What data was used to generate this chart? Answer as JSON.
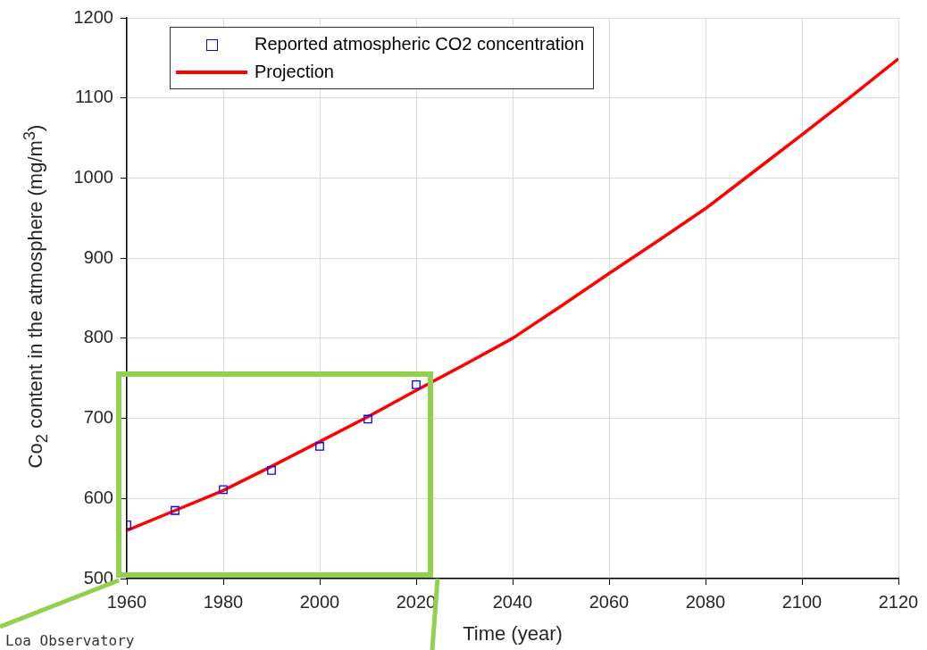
{
  "chart_data": {
    "type": "line",
    "xlabel": "Time (year)",
    "ylabel": "Co$_{2}$ content in the atmosphere (mg/m$^{3}$)",
    "xlim": [
      1960,
      2120
    ],
    "xticks": [
      1960,
      1980,
      2000,
      2020,
      2040,
      2060,
      2080,
      2100,
      2120
    ],
    "ylim": [
      500,
      1200
    ],
    "yticks": [
      500,
      600,
      700,
      800,
      900,
      1000,
      1100,
      1200
    ],
    "grid": true,
    "legend": "top left",
    "annotations": [
      "Loa Observatory"
    ],
    "series": [
      {
        "name": "Reported atmospheric CO2 concentration",
        "type": "scatter",
        "marker": "square",
        "color": "#0000ff",
        "x": [
          1960,
          1970,
          1980,
          1990,
          2000,
          2010,
          2020
        ],
        "values": [
          567,
          585,
          611,
          635,
          665,
          699,
          742
        ]
      },
      {
        "name": "Projection",
        "type": "line",
        "marker": "none",
        "color": "#ff0000",
        "x": [
          1960,
          1970,
          1980,
          1990,
          2000,
          2010,
          2020,
          2030,
          2040,
          2050,
          2060,
          2070,
          2080,
          2090,
          2100,
          2110,
          2120
        ],
        "values": [
          560,
          585,
          610,
          640,
          671,
          702,
          735,
          767,
          800,
          840,
          881,
          921,
          962,
          1008,
          1054,
          1101,
          1149
        ]
      }
    ]
  }
}
